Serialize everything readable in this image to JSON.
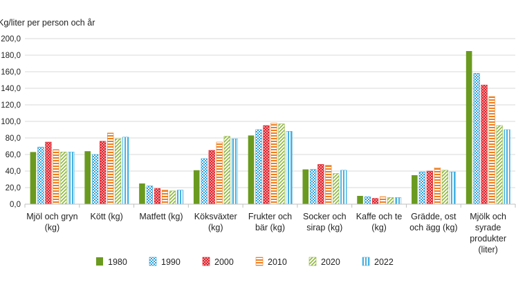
{
  "chart_data": {
    "type": "bar",
    "title": "",
    "ylabel": "Kg/liter per person och år",
    "xlabel": "",
    "ylim": [
      0,
      200
    ],
    "yticks": [
      0,
      20,
      40,
      60,
      80,
      100,
      120,
      140,
      160,
      180,
      200
    ],
    "ytick_labels": [
      "0,0",
      "20,0",
      "40,0",
      "60,0",
      "80,0",
      "100,0",
      "120,0",
      "140,0",
      "160,0",
      "180,0",
      "200,0"
    ],
    "grid": true,
    "legend_position": "bottom",
    "categories": [
      [
        "Mjöl och gryn",
        "(kg)"
      ],
      [
        "Kött (kg)"
      ],
      [
        "Matfett (kg)"
      ],
      [
        "Köksväxter",
        "(kg)"
      ],
      [
        "Frukter och",
        "bär (kg)"
      ],
      [
        "Socker och",
        "sirap (kg)"
      ],
      [
        "Kaffe och te",
        "(kg)"
      ],
      [
        "Grädde, ost",
        "och ägg (kg)"
      ],
      [
        "Mjölk och",
        "syrade",
        "produkter",
        "(liter)"
      ]
    ],
    "series": [
      {
        "name": "1980",
        "color": "#6a9a1f",
        "pattern": "solid",
        "values": [
          63,
          64,
          25,
          41,
          83,
          42,
          10,
          35,
          185
        ]
      },
      {
        "name": "1990",
        "color": "#2e9fd8",
        "pattern": "dots",
        "values": [
          69,
          60,
          22,
          55,
          90,
          42,
          9,
          39,
          158
        ]
      },
      {
        "name": "2000",
        "color": "#e0202a",
        "pattern": "crosshatch",
        "values": [
          75,
          76,
          19,
          65,
          95,
          48,
          7,
          40,
          144
        ]
      },
      {
        "name": "2010",
        "color": "#ee7d1c",
        "pattern": "horizontal",
        "values": [
          66,
          86,
          17,
          75,
          98,
          47,
          9,
          44,
          130
        ]
      },
      {
        "name": "2020",
        "color": "#8fb63b",
        "pattern": "diagonal",
        "values": [
          63,
          79,
          16,
          82,
          97,
          37,
          8,
          41,
          95
        ]
      },
      {
        "name": "2022",
        "color": "#46b1e0",
        "pattern": "vertical",
        "values": [
          63,
          81,
          17,
          79,
          88,
          41,
          8,
          39,
          90
        ]
      }
    ]
  }
}
